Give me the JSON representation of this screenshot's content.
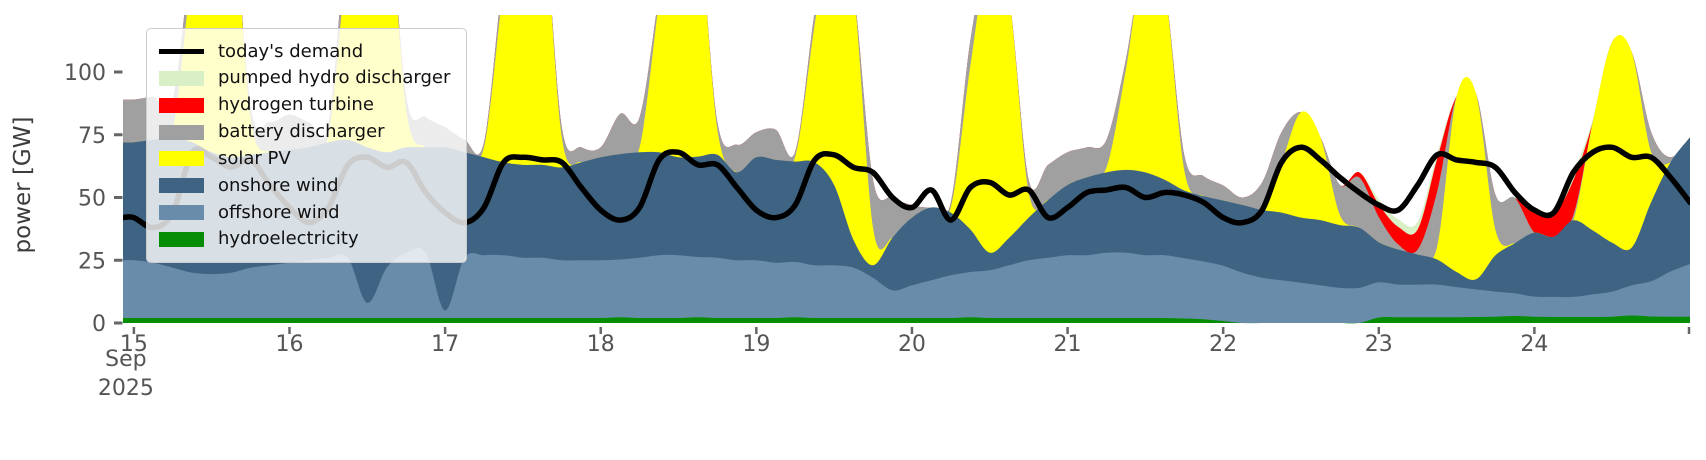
{
  "figure": {
    "ylabel": "power [GW]",
    "x_month_label": "Sep",
    "x_year_label": "2025",
    "tick_color": "#555555",
    "tick_mark_color": "#666666",
    "axis_label_color": "#3c3c3c"
  },
  "legend": {
    "items": [
      {
        "label": "today's demand",
        "color": "#000000",
        "swatch": "line"
      },
      {
        "label": "pumped hydro discharger",
        "color": "#d9efc5",
        "swatch": "patch"
      },
      {
        "label": "hydrogen turbine",
        "color": "#fe0000",
        "swatch": "patch"
      },
      {
        "label": "battery discharger",
        "color": "#a0a0a0",
        "swatch": "patch"
      },
      {
        "label": "solar PV",
        "color": "#ffff00",
        "swatch": "patch"
      },
      {
        "label": "onshore wind",
        "color": "#3f6483",
        "swatch": "patch"
      },
      {
        "label": "offshore wind",
        "color": "#6a8cab",
        "swatch": "patch"
      },
      {
        "label": "hydroelectricity",
        "color": "#078c06",
        "swatch": "patch"
      }
    ]
  },
  "chart_data": {
    "type": "area",
    "title": "",
    "xlabel": "",
    "ylabel": "power [GW]",
    "x_unit": "days since Sep 15 2025 00:00, 3-hour sampling",
    "x_start_day": 15,
    "x_step_hours": 3,
    "xticks": [
      15,
      16,
      17,
      18,
      19,
      20,
      21,
      22,
      23,
      24
    ],
    "yticks": [
      0,
      25,
      50,
      75,
      100
    ],
    "ylim": [
      0,
      123
    ],
    "xlim_days": [
      14.93,
      25.0
    ],
    "grid": false,
    "legend_position": "upper left",
    "series": [
      {
        "name": "hydroelectricity",
        "color": "#078c06",
        "values": [
          2,
          2,
          2,
          2,
          2,
          2,
          2,
          2,
          2,
          2,
          2,
          2,
          2,
          2,
          2,
          2,
          2,
          2,
          2,
          2,
          2,
          2,
          2,
          2,
          2,
          2.3,
          2,
          2,
          2,
          2.3,
          2,
          2,
          2,
          2,
          2.3,
          2,
          2,
          2,
          2,
          2,
          2,
          2,
          2,
          2.3,
          2,
          2,
          2,
          2,
          2,
          2,
          2,
          2,
          2,
          2,
          1.8,
          1.5,
          0.8,
          0,
          0,
          0,
          0,
          0,
          0,
          0,
          2.2,
          2.3,
          2.3,
          2.3,
          2.3,
          2.4,
          2.5,
          2.8,
          2.5,
          2.4,
          2.4,
          2.4,
          2.5,
          3,
          2.6,
          2.5,
          2.5
        ]
      },
      {
        "name": "offshore wind",
        "color": "#6a8cab",
        "values": [
          23,
          22,
          20,
          18,
          17.5,
          18,
          20,
          21,
          22,
          23,
          24,
          24,
          6,
          20,
          26,
          26,
          3,
          24,
          25,
          25,
          24,
          24,
          23,
          23,
          23,
          23,
          24,
          25,
          25,
          24,
          24,
          23,
          23,
          22,
          22,
          21,
          21,
          20,
          16,
          11,
          13,
          15,
          17,
          18,
          19,
          21,
          23,
          24,
          25,
          25,
          26,
          26,
          25,
          25,
          24,
          23,
          22,
          20,
          18,
          17,
          16,
          15,
          14,
          14,
          14,
          13,
          13,
          13,
          12,
          11,
          10,
          9,
          8,
          8,
          8,
          9,
          10,
          12,
          14,
          18,
          21
        ]
      },
      {
        "name": "onshore wind",
        "color": "#3f6483",
        "values": [
          47,
          49,
          52,
          52,
          48.5,
          46,
          45,
          45,
          45,
          45,
          46,
          47,
          62,
          46,
          42,
          42,
          65,
          42,
          39,
          37,
          37,
          37,
          37,
          39,
          41,
          42,
          42,
          41,
          39,
          40,
          41,
          35,
          41,
          41,
          40,
          41,
          32,
          11,
          5,
          21,
          27,
          29,
          25,
          17,
          7,
          11,
          17,
          23,
          28,
          31,
          32,
          33,
          33,
          30,
          27,
          26,
          26,
          27,
          27,
          27,
          26,
          26,
          25,
          24,
          16,
          14,
          12,
          10,
          6,
          4,
          14.5,
          20,
          25.5,
          24,
          30.5,
          25.5,
          19.5,
          15,
          31.5,
          43.5,
          50.5
        ]
      },
      {
        "name": "solar PV",
        "color": "#ffff00",
        "values": [
          0,
          0,
          3,
          70,
          130,
          110,
          15,
          0,
          0,
          0,
          3,
          75,
          130,
          110,
          15,
          0,
          0,
          0,
          4,
          70,
          125,
          105,
          12,
          0,
          0,
          0,
          2,
          60,
          115,
          95,
          10,
          0,
          0,
          0,
          2,
          55,
          115,
          100,
          15,
          0,
          0,
          0,
          2,
          65,
          120,
          95,
          10,
          0,
          0,
          0,
          2,
          40,
          88,
          76,
          8,
          0,
          0,
          0,
          1,
          20,
          42,
          33,
          4,
          0,
          0,
          0,
          0,
          5,
          70,
          74,
          10,
          0,
          0,
          0,
          0,
          43,
          80,
          78,
          20,
          0,
          0
        ]
      },
      {
        "name": "battery discharger",
        "color": "#a0a0a0",
        "values": [
          17,
          17,
          12,
          8,
          0,
          0,
          4,
          12,
          14,
          10,
          4,
          12,
          0,
          0,
          5,
          12,
          8,
          5,
          2,
          6,
          0,
          0,
          4,
          6,
          4,
          16,
          12,
          3,
          0,
          0,
          3,
          11,
          10,
          12,
          2,
          5,
          0,
          0,
          19,
          16,
          5,
          0,
          2,
          10,
          0,
          0,
          5,
          14,
          13,
          12,
          11,
          4,
          0,
          0,
          6,
          8,
          6,
          3,
          10,
          12,
          0,
          0,
          12,
          20,
          10,
          2,
          2,
          22,
          0,
          0,
          14,
          18,
          0,
          0,
          2,
          0,
          0,
          0,
          8,
          2,
          0
        ]
      },
      {
        "name": "hydrogen turbine",
        "color": "#fe0000",
        "values": [
          0,
          0,
          0,
          0,
          0,
          0,
          0,
          0,
          0,
          0,
          0,
          0,
          0,
          0,
          0,
          0,
          0,
          0,
          0,
          0,
          0,
          0,
          0,
          0,
          0,
          0,
          0,
          0,
          0,
          0,
          0,
          0,
          0,
          0,
          0,
          0,
          0,
          0,
          0,
          0,
          0,
          0,
          0,
          0,
          0,
          0,
          0,
          0,
          0,
          0,
          0,
          0,
          0,
          0,
          0,
          0,
          0,
          0,
          0,
          0,
          0,
          0,
          0,
          2,
          5,
          7,
          8,
          13,
          0,
          0,
          0,
          0,
          8,
          9,
          14,
          0,
          0,
          0,
          0,
          0,
          0
        ]
      },
      {
        "name": "pumped hydro discharger",
        "color": "#d9efc5",
        "values": [
          0,
          0,
          0,
          0,
          0,
          0,
          0,
          0,
          0,
          0,
          0,
          0,
          0,
          0,
          0,
          0,
          0,
          0,
          0,
          0,
          0,
          0,
          0,
          0,
          0,
          0,
          0,
          0,
          0,
          0,
          0,
          0,
          0,
          0,
          0,
          0,
          0,
          0,
          0,
          0,
          0,
          0,
          0,
          0,
          0,
          0,
          0,
          0,
          0,
          0,
          0,
          0,
          0,
          0,
          0,
          0,
          0,
          0,
          0,
          0,
          0,
          0,
          0,
          0,
          2,
          3,
          3,
          2,
          0,
          0,
          0,
          0,
          1,
          2,
          3,
          1,
          0,
          0,
          0,
          0,
          0
        ]
      }
    ],
    "demand_line": {
      "name": "today's demand",
      "color": "#000000",
      "width": 5.5,
      "values": [
        42,
        38,
        44,
        68,
        66,
        62,
        65,
        55,
        46,
        40,
        46,
        63,
        66,
        62,
        64,
        52,
        44,
        40,
        46,
        64,
        66,
        65,
        64,
        54,
        45,
        41,
        46,
        65,
        68,
        63,
        63,
        54,
        45,
        42,
        47,
        65,
        67,
        62,
        60,
        50,
        46,
        53,
        41,
        54,
        56,
        51,
        53,
        42,
        46,
        52,
        53,
        54,
        50,
        52,
        51,
        48,
        42,
        40,
        45,
        64,
        70,
        65,
        58,
        52,
        47,
        45,
        55,
        67,
        65,
        64,
        62,
        52,
        45,
        44,
        60,
        68,
        70,
        66,
        66,
        58,
        48
      ]
    }
  }
}
